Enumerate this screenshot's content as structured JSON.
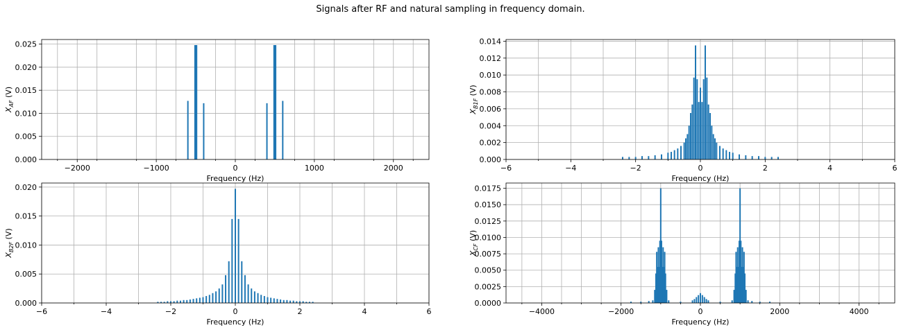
{
  "figure": {
    "suptitle": "Signals after RF and natural sampling in frequency domain."
  },
  "colors": {
    "series": "#1f77b4",
    "grid": "#b0b0b0"
  },
  "chart_data": [
    {
      "id": "xaf",
      "type": "stem",
      "ylabel_main": "X",
      "ylabel_sub": "AF",
      "ylabel_unit": " (V)",
      "xlabel": "Frequency (Hz)",
      "xlim": [
        -2450,
        2450
      ],
      "ylim": [
        0,
        0.026
      ],
      "xticks": [
        -2000,
        -1000,
        0,
        1000,
        2000
      ],
      "xtick_labels": [
        "−2000",
        "−1000",
        "0",
        "1000",
        "2000"
      ],
      "yticks": [
        0,
        0.005,
        0.01,
        0.015,
        0.02,
        0.025
      ],
      "ytick_labels": [
        "0.000",
        "0.005",
        "0.010",
        "0.015",
        "0.020",
        "0.025"
      ],
      "minor_xticks": [
        -2250,
        -1750,
        -1250,
        -750,
        -250,
        250,
        750,
        1250,
        1750,
        2250
      ],
      "grid": true,
      "x": [
        -600,
        -510,
        -500,
        -490,
        -400,
        400,
        490,
        500,
        510,
        600
      ],
      "y": [
        0.0127,
        0.0248,
        0.0248,
        0.0248,
        0.0122,
        0.0122,
        0.0248,
        0.0248,
        0.0248,
        0.0127
      ]
    },
    {
      "id": "xb1f",
      "type": "stem",
      "ylabel_main": "X",
      "ylabel_sub": "B1F",
      "ylabel_unit": " (V)",
      "xlabel": "Frequency (Hz)",
      "xlim": [
        -6,
        6
      ],
      "ylim": [
        0,
        0.0142
      ],
      "xticks": [
        -6,
        -4,
        -2,
        0,
        2,
        4,
        6
      ],
      "xtick_labels": [
        "−6",
        "−4",
        "−2",
        "0",
        "2",
        "4",
        "6"
      ],
      "yticks": [
        0,
        0.002,
        0.004,
        0.006,
        0.008,
        0.01,
        0.012,
        0.014
      ],
      "ytick_labels": [
        "0.000",
        "0.002",
        "0.004",
        "0.006",
        "0.008",
        "0.010",
        "0.012",
        "0.014"
      ],
      "minor_xticks": [
        -5,
        -3,
        -1,
        1,
        3,
        5
      ],
      "grid": true,
      "x": [
        -2.4,
        -2.2,
        -2.0,
        -1.8,
        -1.6,
        -1.4,
        -1.2,
        -1.0,
        -0.9,
        -0.8,
        -0.7,
        -0.6,
        -0.5,
        -0.45,
        -0.4,
        -0.35,
        -0.3,
        -0.25,
        -0.2,
        -0.15,
        -0.1,
        -0.05,
        0,
        0.05,
        0.1,
        0.15,
        0.2,
        0.25,
        0.3,
        0.35,
        0.4,
        0.45,
        0.5,
        0.6,
        0.7,
        0.8,
        0.9,
        1.0,
        1.2,
        1.4,
        1.6,
        1.8,
        2.0,
        2.2,
        2.4
      ],
      "y": [
        0.0003,
        0.0003,
        0.0003,
        0.0004,
        0.0004,
        0.0005,
        0.0006,
        0.0008,
        0.0009,
        0.0011,
        0.0013,
        0.0016,
        0.002,
        0.0025,
        0.003,
        0.004,
        0.0055,
        0.0065,
        0.0097,
        0.0135,
        0.0095,
        0.0068,
        0.0085,
        0.0068,
        0.0095,
        0.0135,
        0.0097,
        0.0065,
        0.0055,
        0.004,
        0.003,
        0.0025,
        0.002,
        0.0016,
        0.0013,
        0.0011,
        0.0009,
        0.0008,
        0.0006,
        0.0005,
        0.0004,
        0.0004,
        0.0003,
        0.0003,
        0.0003
      ]
    },
    {
      "id": "xb2f",
      "type": "stem",
      "ylabel_main": "X",
      "ylabel_sub": "B2F",
      "ylabel_unit": " (V)",
      "xlabel": "Frequency (Hz)",
      "xlim": [
        -6,
        6
      ],
      "ylim": [
        0,
        0.0207
      ],
      "xticks": [
        -6,
        -4,
        -2,
        0,
        2,
        4,
        6
      ],
      "xtick_labels": [
        "−6",
        "−4",
        "−2",
        "0",
        "2",
        "4",
        "6"
      ],
      "yticks": [
        0,
        0.005,
        0.01,
        0.015,
        0.02
      ],
      "ytick_labels": [
        "0.000",
        "0.005",
        "0.010",
        "0.015",
        "0.020"
      ],
      "minor_xticks": [
        -5,
        -3,
        -1,
        1,
        3,
        5
      ],
      "grid": true,
      "x": [
        -2.4,
        -2.3,
        -2.2,
        -2.1,
        -2.0,
        -1.9,
        -1.8,
        -1.7,
        -1.6,
        -1.5,
        -1.4,
        -1.3,
        -1.2,
        -1.1,
        -1.0,
        -0.9,
        -0.8,
        -0.7,
        -0.6,
        -0.5,
        -0.4,
        -0.3,
        -0.2,
        -0.1,
        0,
        0.1,
        0.2,
        0.3,
        0.4,
        0.5,
        0.6,
        0.7,
        0.8,
        0.9,
        1.0,
        1.1,
        1.2,
        1.3,
        1.4,
        1.5,
        1.6,
        1.7,
        1.8,
        1.9,
        2.0,
        2.1,
        2.2,
        2.3,
        2.4
      ],
      "y": [
        0.0002,
        0.0002,
        0.0002,
        0.0003,
        0.0003,
        0.0003,
        0.0004,
        0.0004,
        0.0005,
        0.0005,
        0.0006,
        0.0007,
        0.0008,
        0.0009,
        0.001,
        0.0012,
        0.0014,
        0.0017,
        0.002,
        0.0025,
        0.0032,
        0.0048,
        0.0072,
        0.0145,
        0.0197,
        0.0145,
        0.0072,
        0.0048,
        0.0032,
        0.0025,
        0.002,
        0.0017,
        0.0014,
        0.0012,
        0.001,
        0.0009,
        0.0008,
        0.0007,
        0.0006,
        0.0005,
        0.0005,
        0.0004,
        0.0004,
        0.0003,
        0.0003,
        0.0003,
        0.0002,
        0.0002,
        0.0002
      ]
    },
    {
      "id": "xcf",
      "type": "stem",
      "ylabel_main": "X",
      "ylabel_sub": "CF",
      "ylabel_unit": " (V)",
      "xlabel": "Frequency (Hz)",
      "xlim": [
        -4900,
        4900
      ],
      "ylim": [
        0,
        0.0183
      ],
      "xticks": [
        -4000,
        -2000,
        0,
        2000,
        4000
      ],
      "xtick_labels": [
        "−4000",
        "−2000",
        "0",
        "2000",
        "4000"
      ],
      "yticks": [
        0,
        0.0025,
        0.005,
        0.0075,
        0.01,
        0.0125,
        0.015,
        0.0175
      ],
      "ytick_labels": [
        "0.0000",
        "0.0025",
        "0.0050",
        "0.0075",
        "0.0100",
        "0.0125",
        "0.0150",
        "0.0175"
      ],
      "minor_xticks": [
        -4500,
        -3500,
        -3000,
        -2500,
        -1500,
        -1000,
        -500,
        500,
        1000,
        1500,
        2500,
        3000,
        3500,
        4500
      ],
      "grid": true,
      "x": [
        -1750,
        -1500,
        -1300,
        -1200,
        -1150,
        -1120,
        -1100,
        -1080,
        -1060,
        -1040,
        -1020,
        -1000,
        -980,
        -960,
        -940,
        -920,
        -900,
        -880,
        -850,
        -800,
        -500,
        -200,
        -150,
        -100,
        -50,
        0,
        50,
        100,
        150,
        200,
        500,
        800,
        850,
        880,
        900,
        920,
        940,
        960,
        980,
        1000,
        1020,
        1040,
        1060,
        1080,
        1100,
        1120,
        1150,
        1200,
        1300,
        1500,
        1750
      ],
      "y": [
        0.0002,
        0.0002,
        0.0003,
        0.0004,
        0.002,
        0.0045,
        0.0078,
        0.0055,
        0.0085,
        0.0055,
        0.0095,
        0.0175,
        0.0095,
        0.0055,
        0.0085,
        0.0055,
        0.0078,
        0.0045,
        0.002,
        0.0004,
        0.0002,
        0.0004,
        0.0006,
        0.0009,
        0.0012,
        0.0015,
        0.0012,
        0.0009,
        0.0006,
        0.0004,
        0.0002,
        0.0004,
        0.002,
        0.0045,
        0.0078,
        0.0055,
        0.0085,
        0.0055,
        0.0095,
        0.0175,
        0.0095,
        0.0055,
        0.0085,
        0.0055,
        0.0078,
        0.0045,
        0.002,
        0.0004,
        0.0003,
        0.0002,
        0.0002
      ]
    }
  ]
}
